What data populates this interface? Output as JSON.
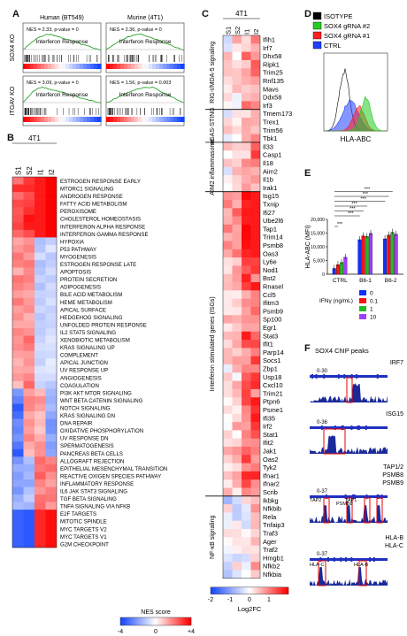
{
  "panels": {
    "a": "A",
    "b": "B",
    "c": "C",
    "d": "D",
    "e": "E",
    "f": "F"
  },
  "panelA": {
    "col_titles": [
      "Human (BT549)",
      "Murine (4T1)"
    ],
    "row_labels": [
      "SOX4 KO",
      "ITGAV KO"
    ],
    "plot_title": "Interferon Response",
    "stats": [
      [
        "NES = 2.33,  p-value = 0",
        "NES = 2.36,  p-value = 0"
      ],
      [
        "NES = 3.09,  p-value = 0",
        "NES = 1.56,  p-value = 0.003"
      ]
    ]
  },
  "panelB": {
    "cell_line": "4T1",
    "columns": [
      "S1",
      "S2",
      "I1",
      "I2"
    ],
    "pathways": [
      "ESTROGEN RESPONSE EARLY",
      "MTORC1 SIGNALING",
      "ANDROGEN RESPONSE",
      "FATTY ACID METABOLISM",
      "PEROXISOME",
      "CHOLESTEROL HOMEOSTASIS",
      "INTERFERON ALPHA RESPONSE",
      "INTERFERON GAMMA RESPONSE",
      "HYPOXIA",
      "P53 PATHWAY",
      "MYOGENESIS",
      "ESTROGEN RESPONSE LATE",
      "APOPTOSIS",
      "PROTEIN SECRETION",
      "ADIPOGENESIS",
      "BILE ACID METABOLISM",
      "HEME METABOLISM",
      "APICAL SURFACE",
      "HEDGEHOG SIGNALING",
      "UNFOLDED PROTEIN RESPONSE",
      "IL2 STAT5 SIGNALING",
      "XENOBIOTIC METABOLISM",
      "KRAS SIGNALING UP",
      "COMPLEMENT",
      "APICAL JUNCTION",
      "UV RESPONSE UP",
      "ANGIOGENESIS",
      "COAGULATION",
      "PI3K AKT MTOR SIGNALING",
      "WNT BETA CATENIN SIGNALING",
      "NOTCH SIGNALING",
      "KRAS SIGNALING DN",
      "DNA REPAIR",
      "OXIDATIVE PHOSPHORYLATION",
      "UV RESPONSE DN",
      "SPERMATOGENESIS",
      "PANCREAS BETA CELLS",
      "ALLOGRAFT REJECTION",
      "EPITHELIAL MESENCHYMAL TRANSITION",
      "REACTIVE OXIGEN SPECIES PATHWAY",
      "INFLAMMATORY RESPONSE",
      "IL6 JAK STAT3 SIGNALING",
      "TGF BETA SIGNALING",
      "TNFA SIGNALING VIA NFKB",
      "E2F TARGETS",
      "MITOTIC SPINDLE",
      "MYC TARGETS V2",
      "MYC TARGETS V1",
      "G2M CHECKPOINT"
    ],
    "scale_title": "NES score",
    "scale_ticks": [
      "-4",
      "0",
      "+4"
    ],
    "color_low": "#1f5fff",
    "color_high": "#ff0000"
  },
  "panelC": {
    "cell_line": "4T1",
    "columns": [
      "S1",
      "S2",
      "I1",
      "I2"
    ],
    "groups": [
      {
        "label": "RIG-I/MDA-5 signaling",
        "genes": [
          "Ifih1",
          "Irf7",
          "Dhx58",
          "Ripk1",
          "Trim25",
          "Rnf135",
          "Mavs",
          "Ddx58",
          "Irf3"
        ]
      },
      {
        "label": "cGAS-STING",
        "genes": [
          "Tmem173",
          "Trex1",
          "Trim56",
          "Tbk1"
        ]
      },
      {
        "label": "AIM2 inflammasome",
        "genes": [
          "Il33",
          "Casp1",
          "Il18",
          "Aim2",
          "Il1b",
          "Irak1"
        ]
      },
      {
        "label": "Interferon stimulated genes (ISGs)",
        "genes": [
          "Isg15",
          "Txnip",
          "Ifi27",
          "Ube2l6",
          "Tap1",
          "Trim14",
          "Psmb8",
          "Oas3",
          "Ly6e",
          "Nod1",
          "Bst2",
          "Rnasel",
          "Ccl5",
          "Ifitm3",
          "Psmb9",
          "Sp100",
          "Egr1",
          "Stat3",
          "Ifit1",
          "Parp14",
          "Socs1",
          "Zbp1",
          "Usp18",
          "Cxcl10",
          "Trim21",
          "Ptpn6",
          "Psme1",
          "Ifi35",
          "Irf2",
          "Stat1",
          "Ifit2",
          "Jak1",
          "Oas2",
          "Tyk2",
          "Ifnar1",
          "Ifnar2",
          "Scrib"
        ]
      },
      {
        "label": "NF-κB signaling",
        "genes": [
          "Ikbkg",
          "Nfkbib",
          "Rela",
          "Tnfaip3",
          "Traf3",
          "Ager",
          "Traf2",
          "Hmgb1",
          "Nfkb2",
          "Nfkbia"
        ]
      }
    ],
    "scale_title": "Log2FC",
    "scale_ticks": [
      "-2",
      "-1",
      "0",
      "1"
    ]
  },
  "panelD": {
    "legend": [
      {
        "label": "ISOTYPE",
        "color": "#000000"
      },
      {
        "label": "SOX4 gRNA #2",
        "color": "#22cc22"
      },
      {
        "label": "SOX4 gRNA #1",
        "color": "#ff2020"
      },
      {
        "label": "CTRL",
        "color": "#2040ff"
      }
    ],
    "xlabel": "HLA-ABC"
  },
  "panelE": {
    "chart_data": {
      "type": "bar",
      "categories": [
        "CTRL",
        "B6-1",
        "B6-2"
      ],
      "series": [
        {
          "name": "0",
          "color": "#1030ff",
          "values": [
            2100,
            12600,
            12900
          ]
        },
        {
          "name": "0.1",
          "color": "#ff1010",
          "values": [
            3500,
            14000,
            14300
          ]
        },
        {
          "name": "1",
          "color": "#22bb22",
          "values": [
            4300,
            13800,
            15300
          ]
        },
        {
          "name": "10",
          "color": "#a040ff",
          "values": [
            6200,
            14900,
            14600
          ]
        }
      ],
      "ylabel": "HLA-ABC (MFI)",
      "ylim": [
        0,
        20000
      ],
      "yticks": [
        "0",
        "5,000",
        "10,000",
        "15,000",
        "20,000"
      ],
      "sig_label": "***",
      "legend_title": "IFNγ (ng/mL)"
    }
  },
  "panelF": {
    "title": "SOX4 ChIP peaks",
    "tracks": [
      {
        "gene": "IRF7",
        "range": "0-30",
        "labels": []
      },
      {
        "gene": "ISG15",
        "range": "0-36",
        "labels": []
      },
      {
        "gene": "TAP1/2\nPSMB8\nPSMB9",
        "range": "0-37",
        "labels": [
          "TAP2",
          "TAP1",
          "PSMB8"
        ]
      },
      {
        "gene": "HLA-B\nHLA-C",
        "range": "0-37",
        "labels": [
          "HLA-C",
          "HLA-B"
        ]
      }
    ]
  }
}
